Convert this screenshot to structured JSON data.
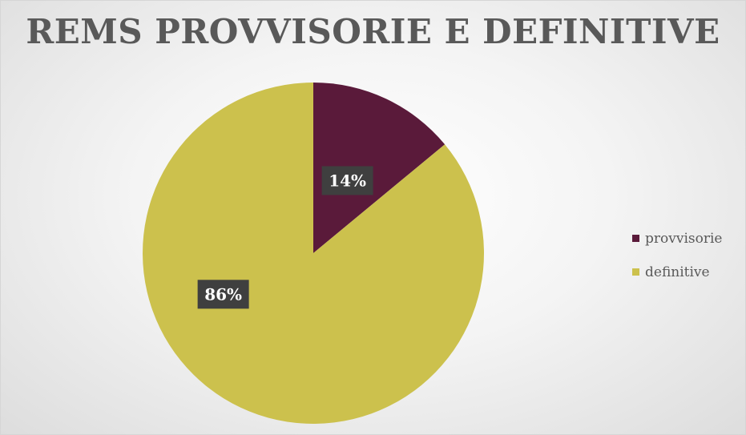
{
  "chart_data": {
    "type": "pie",
    "title": "REMS PROVVISORIE E DEFINITIVE",
    "categories": [
      "provvisorie",
      "definitive"
    ],
    "values": [
      14,
      86
    ],
    "data_labels": [
      "14%",
      "86%"
    ],
    "colors": [
      "#5a1a3a",
      "#ccc14d"
    ],
    "legend_position": "right"
  }
}
